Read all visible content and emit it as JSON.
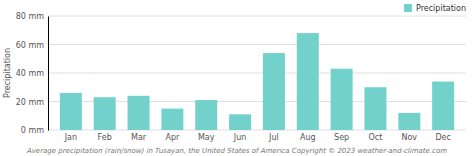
{
  "chart_data": {
    "type": "bar",
    "categories": [
      "Jan",
      "Feb",
      "Mar",
      "Apr",
      "May",
      "Jun",
      "Jul",
      "Aug",
      "Sep",
      "Oct",
      "Nov",
      "Dec"
    ],
    "series": [
      {
        "name": "Precipitation",
        "color": "#72D2CB",
        "values": [
          26,
          23,
          24,
          15,
          21,
          11,
          54,
          68,
          43,
          30,
          12,
          34
        ]
      }
    ],
    "ylabel": "Precipitation",
    "ylim": [
      0,
      80
    ],
    "yticks": [
      {
        "value": 0,
        "label": "0 mm"
      },
      {
        "value": 20,
        "label": "20 mm"
      },
      {
        "value": 40,
        "label": "40 mm"
      },
      {
        "value": 60,
        "label": "60 mm"
      },
      {
        "value": 80,
        "label": "80 mm"
      }
    ],
    "grid": true,
    "legend": "upper right",
    "caption": "Average precipitation (rain/snow) in Tusayan, the United States of America   Copyright © 2023  weather-and-climate.com"
  }
}
